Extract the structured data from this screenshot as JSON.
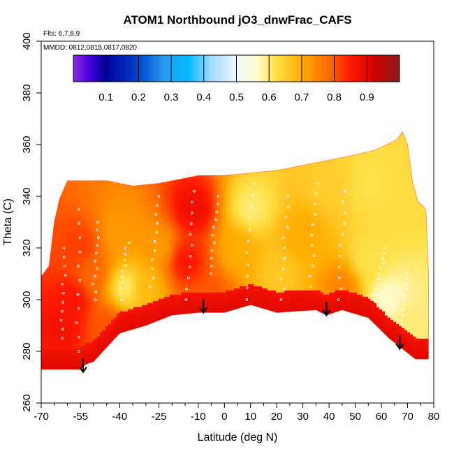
{
  "chart_data": {
    "type": "heatmap",
    "title": "ATOM1 Northbound jO3_dnwFrac_CAFS",
    "flights_note": "Flts: 6,7,8,9",
    "dates_note": "MMDD: 0812,0815,0817,0820",
    "xlabel": "Latitude (deg N)",
    "ylabel": "Theta (C)",
    "xlim": [
      -70,
      80
    ],
    "ylim": [
      260,
      400
    ],
    "x_ticks": [
      -70,
      -55,
      -40,
      -25,
      -10,
      0,
      10,
      20,
      30,
      40,
      50,
      60,
      70,
      80
    ],
    "x_tick_labels": [
      "-70",
      "-55",
      "-40",
      "-25",
      "-10",
      "0",
      "10",
      "20",
      "30",
      "40",
      "50",
      "60",
      "70",
      "80"
    ],
    "x_minor_ticks": [
      -65,
      -60,
      -50,
      -45,
      -35,
      -30,
      -20,
      -15,
      -5,
      5,
      15,
      25,
      35,
      45,
      55,
      65,
      75
    ],
    "y_ticks": [
      260,
      280,
      300,
      320,
      340,
      360,
      380,
      400
    ],
    "y_tick_labels": [
      "260",
      "280",
      "300",
      "320",
      "340",
      "360",
      "380",
      "400"
    ],
    "colorbar": {
      "range": [
        0,
        1
      ],
      "ticks": [
        0.1,
        0.2,
        0.3,
        0.4,
        0.5,
        0.6,
        0.7,
        0.8,
        0.9
      ],
      "tick_labels": [
        "0.1",
        "0.2",
        "0.3",
        "0.4",
        "0.5",
        "0.6",
        "0.7",
        "0.8",
        "0.9"
      ],
      "stops": [
        {
          "v": 0.0,
          "c": "#8a2be2"
        },
        {
          "v": 0.05,
          "c": "#4400dd"
        },
        {
          "v": 0.1,
          "c": "#00009a"
        },
        {
          "v": 0.2,
          "c": "#0044cc"
        },
        {
          "v": 0.28,
          "c": "#2a9df0"
        },
        {
          "v": 0.35,
          "c": "#00b8ff"
        },
        {
          "v": 0.42,
          "c": "#9fd8ff"
        },
        {
          "v": 0.5,
          "c": "#f2f8ff"
        },
        {
          "v": 0.56,
          "c": "#fffbd0"
        },
        {
          "v": 0.62,
          "c": "#ffe24a"
        },
        {
          "v": 0.7,
          "c": "#ffad00"
        },
        {
          "v": 0.78,
          "c": "#ff6a00"
        },
        {
          "v": 0.85,
          "c": "#ff1a00"
        },
        {
          "v": 0.92,
          "c": "#d40000"
        },
        {
          "v": 1.0,
          "c": "#8b1a1a"
        }
      ]
    },
    "data_top_boundary": [
      [
        -70,
        309
      ],
      [
        -67,
        313
      ],
      [
        -65,
        330
      ],
      [
        -63,
        339
      ],
      [
        -60,
        346
      ],
      [
        -55,
        346
      ],
      [
        -45,
        346
      ],
      [
        -35,
        344
      ],
      [
        -25,
        345
      ],
      [
        -10,
        348
      ],
      [
        0,
        348
      ],
      [
        10,
        349
      ],
      [
        20,
        350
      ],
      [
        30,
        352
      ],
      [
        40,
        354
      ],
      [
        50,
        356
      ],
      [
        58,
        358
      ],
      [
        66,
        362
      ],
      [
        68,
        365
      ],
      [
        70,
        360
      ],
      [
        72,
        345
      ],
      [
        74,
        338
      ],
      [
        77,
        335
      ],
      [
        78,
        310
      ],
      [
        78,
        278
      ]
    ],
    "data_bottom_boundary": [
      [
        78,
        277
      ],
      [
        73,
        277
      ],
      [
        63,
        285
      ],
      [
        55,
        293
      ],
      [
        45,
        296
      ],
      [
        39,
        294
      ],
      [
        35,
        296
      ],
      [
        20,
        295
      ],
      [
        10,
        298
      ],
      [
        0,
        295
      ],
      [
        -10,
        295
      ],
      [
        -20,
        294
      ],
      [
        -30,
        290
      ],
      [
        -40,
        287
      ],
      [
        -50,
        276
      ],
      [
        -53,
        275
      ],
      [
        -55,
        273
      ],
      [
        -65,
        273
      ],
      [
        -70,
        273
      ]
    ],
    "field_description_points": [
      {
        "lat": -62,
        "theta": 290,
        "value": 0.87
      },
      {
        "lat": -58,
        "theta": 300,
        "value": 0.86
      },
      {
        "lat": -55,
        "theta": 320,
        "value": 0.82
      },
      {
        "lat": -50,
        "theta": 310,
        "value": 0.78
      },
      {
        "lat": -45,
        "theta": 290,
        "value": 0.8
      },
      {
        "lat": -40,
        "theta": 325,
        "value": 0.72
      },
      {
        "lat": -38,
        "theta": 305,
        "value": 0.6
      },
      {
        "lat": -30,
        "theta": 305,
        "value": 0.68
      },
      {
        "lat": -25,
        "theta": 320,
        "value": 0.72
      },
      {
        "lat": -15,
        "theta": 315,
        "value": 0.86
      },
      {
        "lat": -12,
        "theta": 335,
        "value": 0.88
      },
      {
        "lat": -5,
        "theta": 300,
        "value": 0.8
      },
      {
        "lat": 5,
        "theta": 320,
        "value": 0.7
      },
      {
        "lat": 10,
        "theta": 335,
        "value": 0.6
      },
      {
        "lat": 20,
        "theta": 310,
        "value": 0.66
      },
      {
        "lat": 30,
        "theta": 325,
        "value": 0.7
      },
      {
        "lat": 40,
        "theta": 345,
        "value": 0.65
      },
      {
        "lat": 45,
        "theta": 305,
        "value": 0.75
      },
      {
        "lat": 55,
        "theta": 315,
        "value": 0.62
      },
      {
        "lat": 62,
        "theta": 300,
        "value": 0.56
      },
      {
        "lat": 70,
        "theta": 290,
        "value": 0.6
      },
      {
        "lat": 55,
        "theta": 345,
        "value": 0.62
      }
    ],
    "arrows": [
      {
        "lat": -54,
        "theta": 272
      },
      {
        "lat": -8,
        "theta": 295
      },
      {
        "lat": 39,
        "theta": 294
      },
      {
        "lat": 67,
        "theta": 281
      }
    ]
  }
}
